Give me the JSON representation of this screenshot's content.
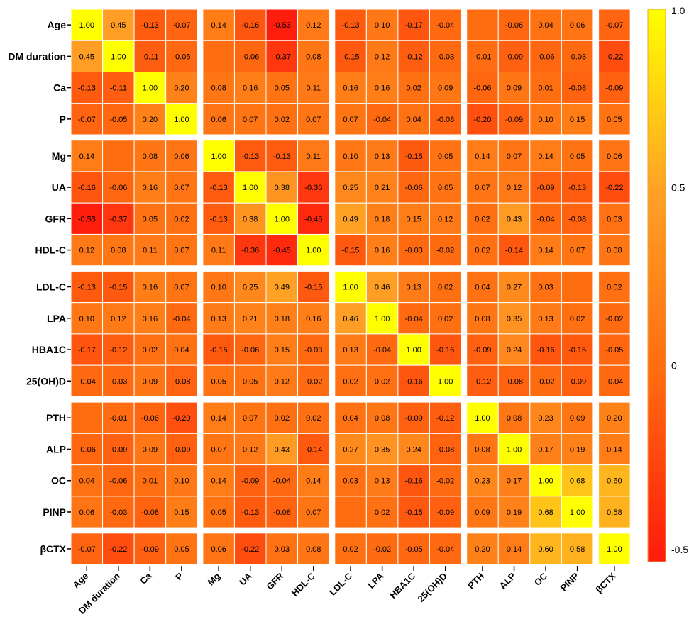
{
  "chart_data": {
    "type": "heatmap",
    "title": "",
    "xlabel": "",
    "ylabel": "",
    "variables": [
      "Age",
      "DM duration",
      "Ca",
      "P",
      "Mg",
      "UA",
      "GFR",
      "HDL-C",
      "LDL-C",
      "LPA",
      "HBA1C",
      "25(OH)D",
      "PTH",
      "ALP",
      "OC",
      "PINP",
      "βCTX"
    ],
    "x_tick_labels": [
      "Age",
      "DM duration",
      "Ca",
      "P",
      "Mg",
      "UA",
      "GFR",
      "HDL-C",
      "LDL-C",
      "LPA",
      "HBA1C",
      "25(OH)D",
      "PTH",
      "ALP",
      "OC",
      "PINP",
      "βCTX"
    ],
    "y_tick_labels": [
      "Age",
      "DM duration",
      "Ca",
      "P",
      "Mg",
      "UA",
      "GFR",
      "HDL-C",
      "LDL-C",
      "LPA",
      "HBA1C",
      "25(OH)D",
      "PTH",
      "ALP",
      "OC",
      "PINP",
      "βCTX"
    ],
    "values": [
      [
        1.0,
        0.45,
        -0.13,
        -0.07,
        0.14,
        -0.16,
        -0.53,
        0.12,
        -0.13,
        0.1,
        -0.17,
        -0.04,
        null,
        -0.06,
        0.04,
        0.06,
        -0.07
      ],
      [
        0.45,
        1.0,
        -0.11,
        -0.05,
        null,
        -0.06,
        -0.37,
        0.08,
        -0.15,
        0.12,
        -0.12,
        -0.03,
        -0.01,
        -0.09,
        -0.06,
        -0.03,
        -0.22
      ],
      [
        -0.13,
        -0.11,
        1.0,
        0.2,
        0.08,
        0.16,
        0.05,
        0.11,
        0.16,
        0.16,
        0.02,
        0.09,
        -0.06,
        0.09,
        0.01,
        -0.08,
        -0.09
      ],
      [
        -0.07,
        -0.05,
        0.2,
        1.0,
        0.06,
        0.07,
        0.02,
        0.07,
        0.07,
        -0.04,
        0.04,
        -0.08,
        -0.2,
        -0.09,
        0.1,
        0.15,
        0.05
      ],
      [
        0.14,
        null,
        0.08,
        0.06,
        1.0,
        -0.13,
        -0.13,
        0.11,
        0.1,
        0.13,
        -0.15,
        0.05,
        0.14,
        0.07,
        0.14,
        0.05,
        0.06
      ],
      [
        -0.16,
        -0.06,
        0.16,
        0.07,
        -0.13,
        1.0,
        0.38,
        -0.36,
        0.25,
        0.21,
        -0.06,
        0.05,
        0.07,
        0.12,
        -0.09,
        -0.13,
        -0.22
      ],
      [
        -0.53,
        -0.37,
        0.05,
        0.02,
        -0.13,
        0.38,
        1.0,
        -0.45,
        0.49,
        0.18,
        0.15,
        0.12,
        0.02,
        0.43,
        -0.04,
        -0.08,
        0.03
      ],
      [
        0.12,
        0.08,
        0.11,
        0.07,
        0.11,
        -0.36,
        -0.45,
        1.0,
        -0.15,
        0.16,
        -0.03,
        -0.02,
        0.02,
        -0.14,
        0.14,
        0.07,
        0.08
      ],
      [
        -0.13,
        -0.15,
        0.16,
        0.07,
        0.1,
        0.25,
        0.49,
        -0.15,
        1.0,
        0.46,
        0.13,
        0.02,
        0.04,
        0.27,
        0.03,
        null,
        0.02
      ],
      [
        0.1,
        0.12,
        0.16,
        -0.04,
        0.13,
        0.21,
        0.18,
        0.16,
        0.46,
        1.0,
        -0.04,
        0.02,
        0.08,
        0.35,
        0.13,
        0.02,
        -0.02
      ],
      [
        -0.17,
        -0.12,
        0.02,
        0.04,
        -0.15,
        -0.06,
        0.15,
        -0.03,
        0.13,
        -0.04,
        1.0,
        -0.16,
        -0.09,
        0.24,
        -0.16,
        -0.15,
        -0.05
      ],
      [
        -0.04,
        -0.03,
        0.09,
        -0.08,
        0.05,
        0.05,
        0.12,
        -0.02,
        0.02,
        0.02,
        -0.16,
        1.0,
        -0.12,
        -0.08,
        -0.02,
        -0.09,
        -0.04
      ],
      [
        null,
        -0.01,
        -0.06,
        -0.2,
        0.14,
        0.07,
        0.02,
        0.02,
        0.04,
        0.08,
        -0.09,
        -0.12,
        1.0,
        0.08,
        0.23,
        0.09,
        0.2
      ],
      [
        -0.06,
        -0.09,
        0.09,
        -0.09,
        0.07,
        0.12,
        0.43,
        -0.14,
        0.27,
        0.35,
        0.24,
        -0.08,
        0.08,
        1.0,
        0.17,
        0.19,
        0.14
      ],
      [
        0.04,
        -0.06,
        0.01,
        0.1,
        0.14,
        -0.09,
        -0.04,
        0.14,
        0.03,
        0.13,
        -0.16,
        -0.02,
        0.23,
        0.17,
        1.0,
        0.68,
        0.6
      ],
      [
        0.06,
        -0.03,
        -0.08,
        0.15,
        0.05,
        -0.13,
        -0.08,
        0.07,
        null,
        0.02,
        -0.15,
        -0.09,
        0.09,
        0.19,
        0.68,
        1.0,
        0.58
      ],
      [
        -0.07,
        -0.22,
        -0.09,
        0.05,
        0.06,
        -0.22,
        0.03,
        0.08,
        0.02,
        -0.02,
        -0.05,
        -0.04,
        0.2,
        0.14,
        0.6,
        0.58,
        1.0
      ]
    ],
    "value_range": [
      -0.55,
      1.0
    ],
    "colorbar": {
      "ticks": [
        1.0,
        0.5,
        0,
        -0.5
      ],
      "tick_labels": [
        "1.0",
        "0.5",
        "0",
        "-0.5"
      ],
      "colors": [
        "#ff1a0d",
        "#ff6a10",
        "#ffa025",
        "#ffff00"
      ]
    },
    "block_size": 4,
    "blocks": 4,
    "grid": true,
    "legend": "right"
  }
}
